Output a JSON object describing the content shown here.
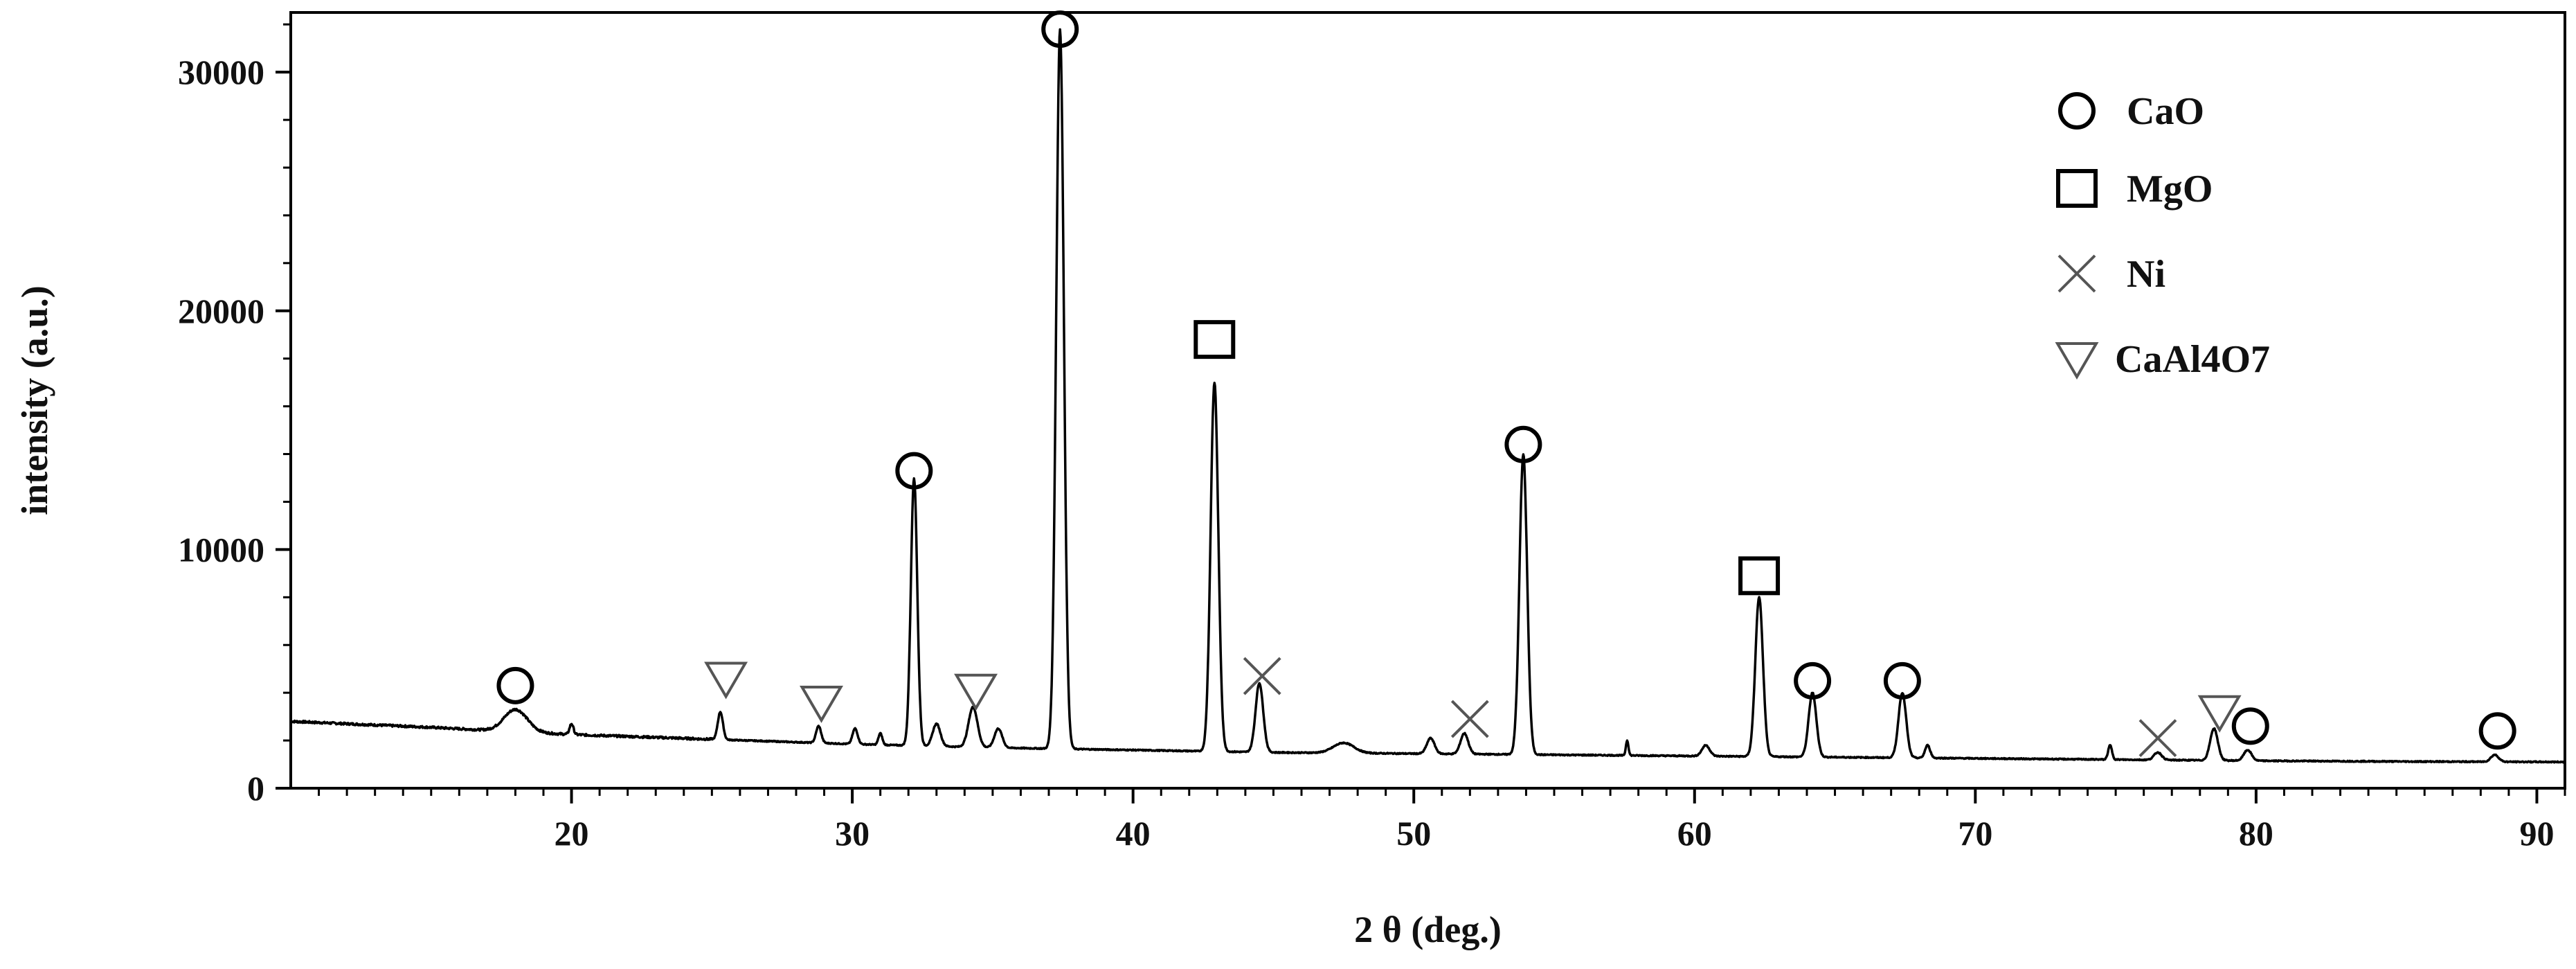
{
  "chart_data": {
    "type": "line",
    "xlabel": "2 θ (deg.)",
    "ylabel": "intensity (a.u.)",
    "xlim": [
      10,
      91
    ],
    "ylim": [
      0,
      32500
    ],
    "xticks": [
      20,
      30,
      40,
      50,
      60,
      70,
      80,
      90
    ],
    "yticks": [
      0,
      10000,
      20000,
      30000
    ],
    "grid": false,
    "legend_position": "top-right",
    "series": [
      {
        "baseline": [
          [
            10,
            2800
          ],
          [
            15,
            2550
          ],
          [
            20,
            2250
          ],
          [
            25,
            2050
          ],
          [
            30,
            1850
          ],
          [
            35,
            1700
          ],
          [
            40,
            1600
          ],
          [
            45,
            1500
          ],
          [
            50,
            1450
          ],
          [
            55,
            1400
          ],
          [
            60,
            1350
          ],
          [
            65,
            1300
          ],
          [
            70,
            1250
          ],
          [
            75,
            1200
          ],
          [
            80,
            1150
          ],
          [
            85,
            1120
          ],
          [
            91,
            1100
          ]
        ],
        "peaks": [
          {
            "x": 18.0,
            "y": 3300,
            "w": 0.9
          },
          {
            "x": 20.0,
            "y": 2700,
            "w": 0.15
          },
          {
            "x": 25.3,
            "y": 3200,
            "w": 0.2
          },
          {
            "x": 28.8,
            "y": 2600,
            "w": 0.2
          },
          {
            "x": 30.1,
            "y": 2500,
            "w": 0.2
          },
          {
            "x": 31.0,
            "y": 2300,
            "w": 0.15
          },
          {
            "x": 32.2,
            "y": 13000,
            "w": 0.25
          },
          {
            "x": 33.0,
            "y": 2700,
            "w": 0.3
          },
          {
            "x": 34.3,
            "y": 3400,
            "w": 0.35
          },
          {
            "x": 35.2,
            "y": 2500,
            "w": 0.3
          },
          {
            "x": 37.4,
            "y": 31800,
            "w": 0.3
          },
          {
            "x": 42.9,
            "y": 17000,
            "w": 0.3
          },
          {
            "x": 44.5,
            "y": 4400,
            "w": 0.3
          },
          {
            "x": 47.5,
            "y": 1900,
            "w": 0.8
          },
          {
            "x": 50.6,
            "y": 2100,
            "w": 0.3
          },
          {
            "x": 51.8,
            "y": 2300,
            "w": 0.3
          },
          {
            "x": 53.9,
            "y": 14000,
            "w": 0.3
          },
          {
            "x": 57.6,
            "y": 2000,
            "w": 0.1
          },
          {
            "x": 60.4,
            "y": 1800,
            "w": 0.3
          },
          {
            "x": 62.3,
            "y": 8000,
            "w": 0.3
          },
          {
            "x": 64.2,
            "y": 4000,
            "w": 0.3
          },
          {
            "x": 67.4,
            "y": 4000,
            "w": 0.3
          },
          {
            "x": 68.3,
            "y": 1800,
            "w": 0.2
          },
          {
            "x": 74.8,
            "y": 1800,
            "w": 0.15
          },
          {
            "x": 76.5,
            "y": 1500,
            "w": 0.3
          },
          {
            "x": 78.5,
            "y": 2500,
            "w": 0.3
          },
          {
            "x": 79.7,
            "y": 1600,
            "w": 0.3
          },
          {
            "x": 88.5,
            "y": 1400,
            "w": 0.3
          }
        ]
      }
    ],
    "phase_markers": [
      {
        "symbol": "circle",
        "x": 18.0,
        "y": 4300
      },
      {
        "symbol": "circle",
        "x": 32.2,
        "y": 13300
      },
      {
        "symbol": "circle",
        "x": 37.4,
        "y": 31800
      },
      {
        "symbol": "circle",
        "x": 53.9,
        "y": 14400
      },
      {
        "symbol": "circle",
        "x": 64.2,
        "y": 4500
      },
      {
        "symbol": "circle",
        "x": 67.4,
        "y": 4500
      },
      {
        "symbol": "circle",
        "x": 79.8,
        "y": 2600
      },
      {
        "symbol": "circle",
        "x": 88.6,
        "y": 2400
      },
      {
        "symbol": "square",
        "x": 42.9,
        "y": 18800
      },
      {
        "symbol": "square",
        "x": 62.3,
        "y": 8900
      },
      {
        "symbol": "cross",
        "x": 44.6,
        "y": 4700
      },
      {
        "symbol": "cross",
        "x": 52.0,
        "y": 2900
      },
      {
        "symbol": "cross",
        "x": 76.5,
        "y": 2100
      },
      {
        "symbol": "triangle",
        "x": 25.5,
        "y": 4600
      },
      {
        "symbol": "triangle",
        "x": 28.9,
        "y": 3600
      },
      {
        "symbol": "triangle",
        "x": 34.4,
        "y": 4100
      },
      {
        "symbol": "triangle",
        "x": 78.7,
        "y": 3200
      }
    ],
    "legend": [
      {
        "symbol": "circle",
        "label": "CaO"
      },
      {
        "symbol": "square",
        "label": "MgO"
      },
      {
        "symbol": "cross",
        "label": "Ni"
      },
      {
        "symbol": "triangle",
        "label": "CaAl4O7"
      }
    ],
    "colors": {
      "line": "#000000",
      "triangle_marker": "#555555",
      "cross_marker": "#555555"
    }
  }
}
